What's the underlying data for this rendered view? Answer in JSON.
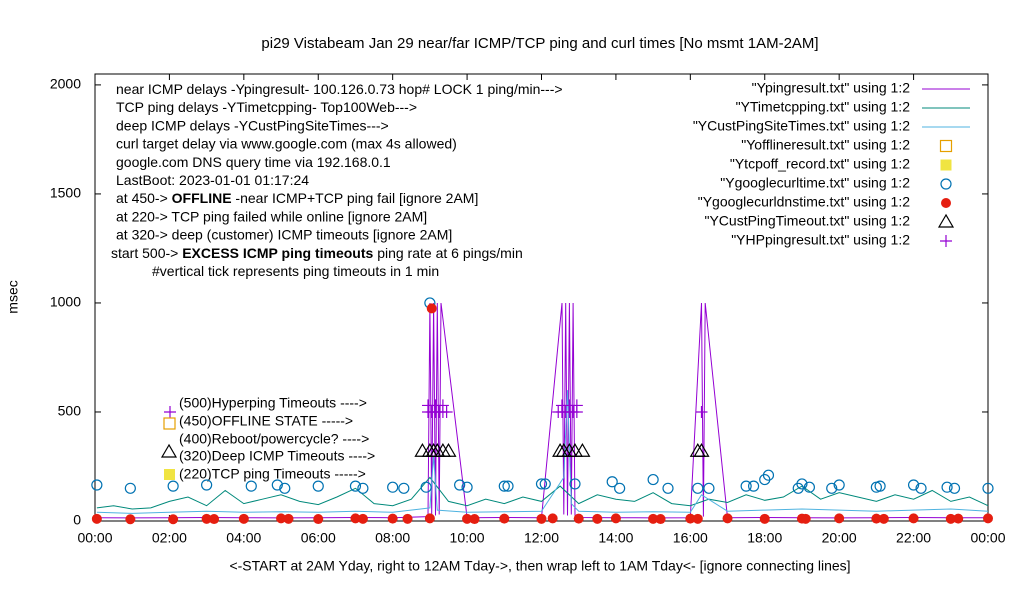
{
  "chart_data": {
    "type": "line",
    "title": "pi29 Vistabeam Jan 29  near/far ICMP/TCP ping and curl times [No msmt 1AM-2AM]",
    "x_label": "<-START at 2AM Yday, right to 12AM Tday->, then wrap left to 1AM Tday<- [ignore connecting lines]",
    "y_label": "msec",
    "xlim": [
      0,
      24
    ],
    "ylim": [
      0,
      2050
    ],
    "xticks": [
      {
        "value": 0,
        "label": "00:00"
      },
      {
        "value": 2,
        "label": "02:00"
      },
      {
        "value": 4,
        "label": "04:00"
      },
      {
        "value": 6,
        "label": "06:00"
      },
      {
        "value": 8,
        "label": "08:00"
      },
      {
        "value": 10,
        "label": "10:00"
      },
      {
        "value": 12,
        "label": "12:00"
      },
      {
        "value": 14,
        "label": "14:00"
      },
      {
        "value": 16,
        "label": "16:00"
      },
      {
        "value": 18,
        "label": "18:00"
      },
      {
        "value": 20,
        "label": "20:00"
      },
      {
        "value": 22,
        "label": "22:00"
      },
      {
        "value": 24,
        "label": "00:00"
      }
    ],
    "yticks": [
      0,
      500,
      1000,
      1500,
      2000
    ],
    "notes": [
      [
        "near ICMP delays -Ypingresult- 100.126.0.73 hop# LOCK 1 ping/min--->"
      ],
      [
        "TCP ping delays -YTimetcpping- Top100Web--->"
      ],
      [
        "deep ICMP delays -YCustPingSiteTimes--->"
      ],
      [
        "curl target delay via www.google.com (max 4s allowed)"
      ],
      [
        "google.com DNS query time via 192.168.0.1"
      ],
      [
        "LastBoot: 2023-01-01 01:17:24"
      ],
      [
        "at 450-> ",
        "OFFLINE",
        " -near ICMP+TCP ping fail [ignore 2AM]"
      ],
      [
        "at 220-> TCP ping failed while online [ignore 2AM]"
      ],
      [
        "at 320-> deep (customer) ICMP timeouts [ignore 2AM]"
      ],
      [
        "start 500-> ",
        "EXCESS ICMP ping timeouts",
        "  ping rate at 6 pings/min"
      ],
      [
        "#vertical tick represents ping timeouts in 1 min"
      ]
    ],
    "key_notes": [
      "(500)Hyperping Timeouts ---->",
      "(450)OFFLINE STATE ----->",
      "(400)Reboot/powercycle? ---->",
      "(320)Deep ICMP Timeouts ---->",
      "(220)TCP ping Timeouts ----->"
    ],
    "series": [
      {
        "name": "\"Ypingresult.txt\" using 1:2",
        "color": "#9400d3",
        "style": "line",
        "x": [
          0.05,
          1,
          2,
          3,
          4,
          5,
          6,
          7,
          8,
          8.95,
          9.0,
          9.05,
          9.1,
          9.15,
          9.2,
          9.25,
          9.3,
          10,
          11,
          12,
          12.55,
          12.6,
          12.65,
          12.7,
          12.75,
          12.8,
          12.85,
          12.9,
          13,
          14,
          15,
          16,
          16.3,
          16.35,
          16.4,
          17,
          18,
          19,
          20,
          21,
          22,
          23,
          24
        ],
        "values": [
          15,
          14,
          15,
          16,
          15,
          14,
          15,
          16,
          15,
          20,
          1000,
          30,
          1000,
          25,
          1000,
          30,
          1000,
          15,
          16,
          15,
          1000,
          30,
          1000,
          25,
          1000,
          30,
          1000,
          25,
          16,
          15,
          14,
          15,
          1000,
          20,
          1000,
          15,
          16,
          15,
          14,
          15,
          16,
          15,
          15
        ]
      },
      {
        "name": "\"YTimetcpping.txt\" using 1:2",
        "color": "#00897b",
        "style": "line",
        "x": [
          0.05,
          0.5,
          1,
          1.5,
          2,
          2.5,
          3,
          3.5,
          4,
          4.5,
          5,
          5.5,
          6,
          6.5,
          7,
          7.5,
          8,
          8.5,
          9,
          9.5,
          10,
          10.5,
          11,
          11.5,
          12,
          12.5,
          13,
          13.5,
          14,
          14.5,
          15,
          15.5,
          16,
          16.5,
          17,
          17.5,
          18,
          18.5,
          19,
          19.5,
          20,
          20.5,
          21,
          21.5,
          22,
          22.5,
          23,
          23.5,
          24
        ],
        "values": [
          60,
          70,
          55,
          60,
          90,
          110,
          70,
          140,
          80,
          100,
          120,
          90,
          75,
          110,
          150,
          80,
          70,
          100,
          200,
          90,
          70,
          100,
          80,
          110,
          90,
          160,
          80,
          120,
          100,
          90,
          130,
          80,
          70,
          100,
          85,
          120,
          95,
          110,
          160,
          100,
          130,
          110,
          90,
          120,
          100,
          140,
          90,
          110,
          70
        ]
      },
      {
        "name": "\"YCustPingSiteTimes.txt\" using 1:2",
        "color": "#4fb3e0",
        "style": "line",
        "x": [
          0.05,
          1,
          2,
          3,
          4,
          5,
          6,
          7,
          8,
          9,
          9.1,
          9.2,
          10,
          11,
          12,
          12.6,
          12.7,
          12.8,
          13,
          14,
          15,
          16,
          16.3,
          17,
          18,
          19,
          20,
          21,
          22,
          23,
          24
        ],
        "values": [
          40,
          35,
          40,
          45,
          40,
          42,
          40,
          45,
          40,
          60,
          300,
          50,
          40,
          42,
          45,
          200,
          600,
          80,
          45,
          40,
          42,
          40,
          120,
          45,
          50,
          55,
          50,
          45,
          50,
          55,
          45
        ]
      },
      {
        "name": "\"Yofflineresult.txt\" using 1:2",
        "color": "#e69f00",
        "style": "square-open",
        "x": [],
        "values": []
      },
      {
        "name": "\"Ytcpoff_record.txt\" using 1:2",
        "color": "#f0e442",
        "style": "square-filled",
        "x": [],
        "values": []
      },
      {
        "name": "\"Ygooglecurltime.txt\" using 1:2",
        "color": "#0072b2",
        "style": "circle-open",
        "x": [
          0.05,
          0.95,
          2.1,
          3,
          4.2,
          4.9,
          5.1,
          6,
          7,
          7.2,
          8,
          8.3,
          8.9,
          9.0,
          9.8,
          10,
          11,
          11.1,
          12,
          12.1,
          12.9,
          13.9,
          14.1,
          15,
          15.4,
          16.2,
          16.5,
          17.5,
          17.7,
          18,
          18.1,
          18.9,
          19,
          19.2,
          19.8,
          20,
          21,
          21.1,
          22,
          22.2,
          22.9,
          23.1,
          24
        ],
        "values": [
          165,
          150,
          160,
          165,
          160,
          165,
          150,
          160,
          160,
          150,
          155,
          150,
          155,
          1000,
          165,
          155,
          160,
          160,
          170,
          170,
          170,
          180,
          150,
          190,
          150,
          150,
          150,
          160,
          160,
          190,
          210,
          150,
          170,
          155,
          150,
          165,
          155,
          160,
          165,
          150,
          155,
          150,
          150
        ]
      },
      {
        "name": "\"Ygooglecurldnstime.txt\" using 1:2",
        "color": "#e51e10",
        "style": "circle-filled",
        "x": [
          0.05,
          0.95,
          2.1,
          3,
          3.2,
          4,
          5,
          5.2,
          6,
          7,
          7.2,
          8,
          8.4,
          9,
          9.05,
          10,
          10.2,
          11,
          12,
          12.3,
          13,
          13.5,
          14,
          15,
          15.2,
          16,
          16.2,
          17,
          18,
          19,
          19.1,
          20,
          21,
          21.2,
          22,
          23,
          23.2,
          24
        ],
        "values": [
          10,
          8,
          8,
          10,
          9,
          10,
          12,
          10,
          9,
          12,
          10,
          11,
          10,
          12,
          975,
          10,
          9,
          11,
          10,
          12,
          11,
          10,
          12,
          10,
          9,
          11,
          10,
          12,
          10,
          11,
          10,
          12,
          11,
          10,
          12,
          10,
          11,
          12
        ]
      },
      {
        "name": "\"YCustPingTimeout.txt\" using 1:2",
        "color": "#000000",
        "style": "triangle-open",
        "x": [
          8.8,
          9.0,
          9.1,
          9.2,
          9.35,
          9.5,
          12.5,
          12.6,
          12.75,
          12.9,
          13.1,
          16.2,
          16.3
        ],
        "values": [
          320,
          320,
          320,
          320,
          320,
          320,
          320,
          320,
          320,
          320,
          320,
          320,
          320
        ]
      },
      {
        "name": "\"YHPpingresult.txt\" using 1:2",
        "color": "#9400d3",
        "style": "plus",
        "x": [
          8.95,
          9.05,
          9.15,
          9.25,
          9.35,
          9.45,
          8.95,
          9.15,
          9.35,
          12.45,
          12.55,
          12.65,
          12.75,
          12.85,
          12.95,
          12.55,
          12.75,
          12.95,
          16.3
        ],
        "values": [
          500,
          500,
          500,
          500,
          500,
          500,
          530,
          530,
          530,
          500,
          500,
          500,
          500,
          500,
          500,
          530,
          530,
          530,
          500
        ]
      }
    ]
  }
}
